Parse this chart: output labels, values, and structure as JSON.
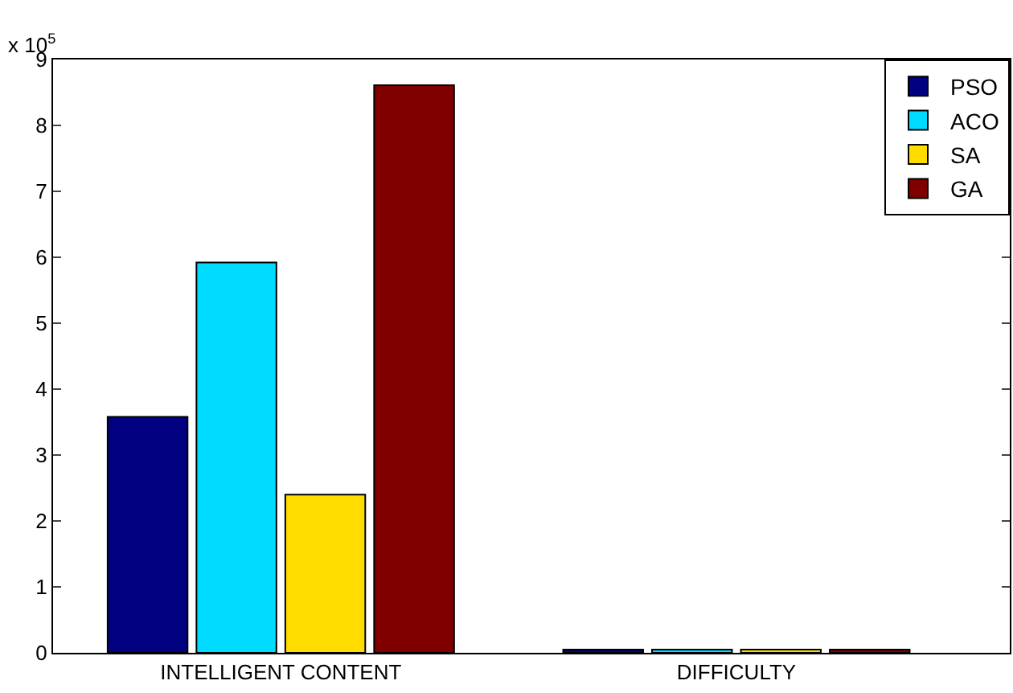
{
  "chart_data": {
    "type": "bar",
    "categories": [
      "INTELLIGENT CONTENT",
      "DIFFICULTY"
    ],
    "series": [
      {
        "name": "PSO",
        "color": "#000080",
        "values": [
          3.58,
          0.05
        ]
      },
      {
        "name": "ACO",
        "color": "#00dcff",
        "values": [
          5.92,
          0.05
        ]
      },
      {
        "name": "SA",
        "color": "#ffdc00",
        "values": [
          2.4,
          0.05
        ]
      },
      {
        "name": "GA",
        "color": "#800000",
        "values": [
          8.61,
          0.05
        ]
      }
    ],
    "ylim": [
      0,
      9
    ],
    "yticks": [
      0,
      1,
      2,
      3,
      4,
      5,
      6,
      7,
      8,
      9
    ],
    "annotations": [
      "x 10$^{5}$"
    ],
    "grid": false,
    "legend": "top right"
  }
}
